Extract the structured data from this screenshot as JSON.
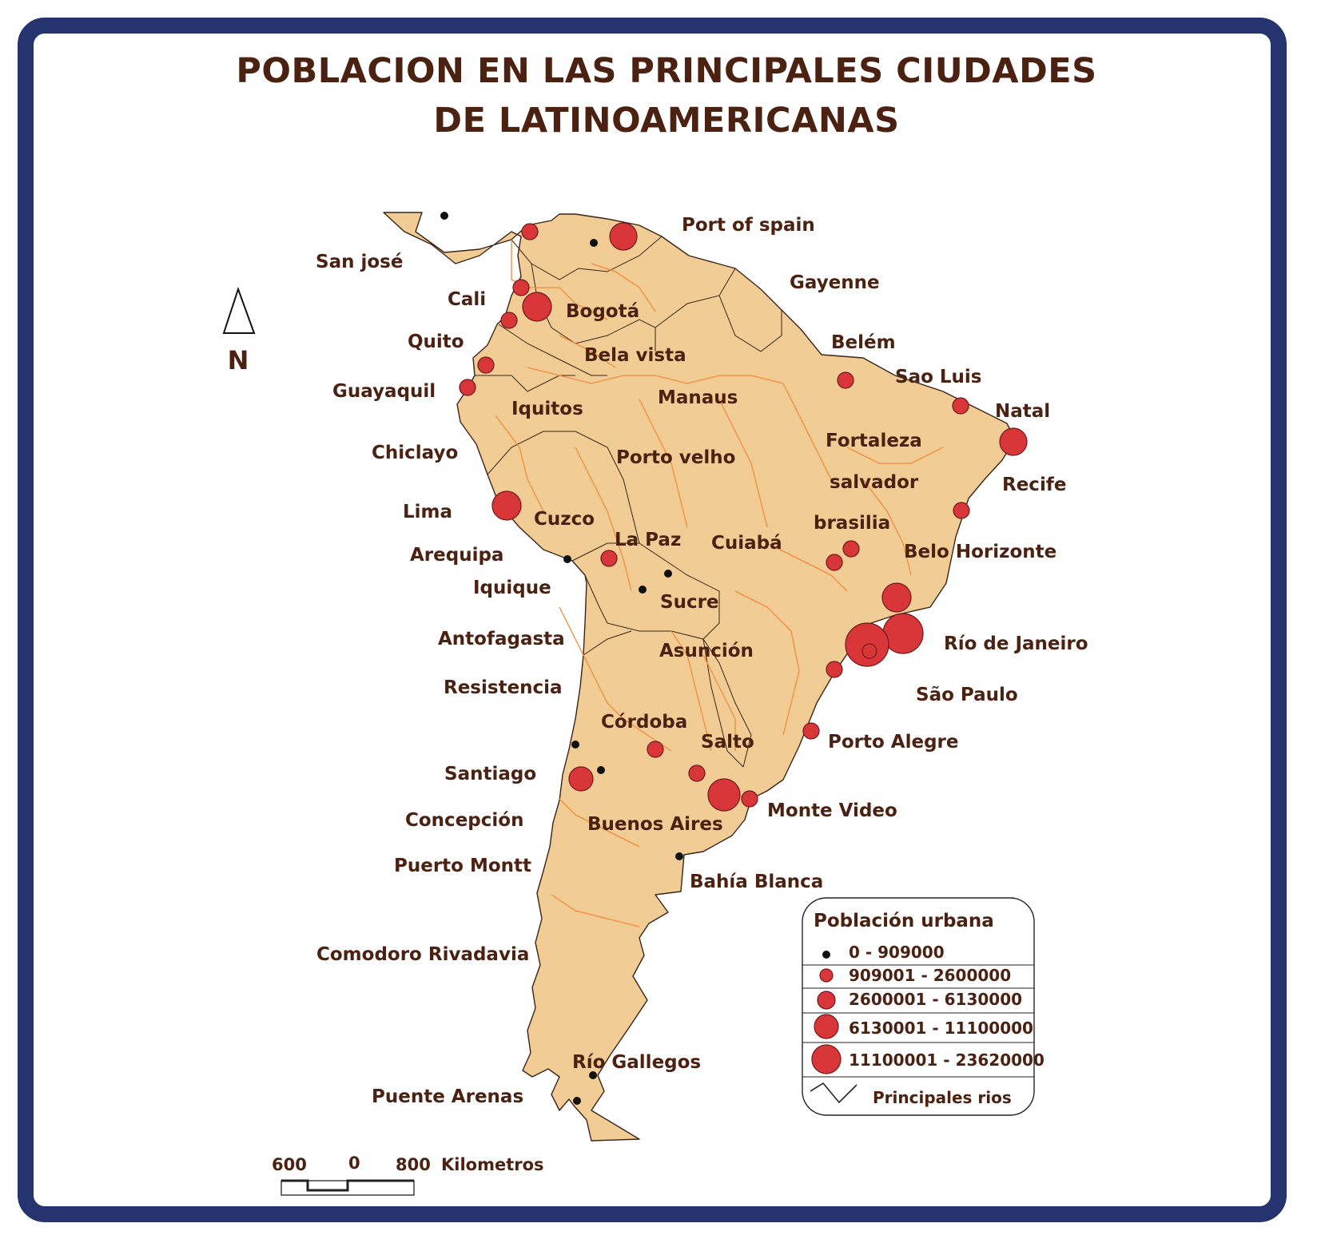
{
  "title_line1": "POBLACION EN LAS PRINCIPALES CIUDADES",
  "title_line2": "DE LATINOAMERICANAS",
  "north_label": "N",
  "colors": {
    "frame": "#25336e",
    "land": "#f1cc94",
    "rivers": "#f28c3c",
    "city_circle": "#d9363a",
    "text": "#4b2212"
  },
  "labels": [
    {
      "id": "port-of-spain",
      "text": "Port of spain"
    },
    {
      "id": "san-jose",
      "text": "San josé"
    },
    {
      "id": "gayenne",
      "text": "Gayenne"
    },
    {
      "id": "cali",
      "text": "Cali"
    },
    {
      "id": "bogota",
      "text": "Bogotá"
    },
    {
      "id": "quito",
      "text": "Quito"
    },
    {
      "id": "belem",
      "text": "Belém"
    },
    {
      "id": "bela-vista",
      "text": "Bela vista"
    },
    {
      "id": "sao-luis",
      "text": "Sao Luis"
    },
    {
      "id": "guayaquil",
      "text": "Guayaquil"
    },
    {
      "id": "manaus",
      "text": "Manaus"
    },
    {
      "id": "iquitos",
      "text": "Iquitos"
    },
    {
      "id": "natal",
      "text": "Natal"
    },
    {
      "id": "fortaleza",
      "text": "Fortaleza"
    },
    {
      "id": "chiclayo",
      "text": "Chiclayo"
    },
    {
      "id": "porto-velho",
      "text": "Porto velho"
    },
    {
      "id": "salvador",
      "text": "salvador"
    },
    {
      "id": "recife",
      "text": "Recife"
    },
    {
      "id": "lima",
      "text": "Lima"
    },
    {
      "id": "cuzco",
      "text": "Cuzco"
    },
    {
      "id": "brasilia",
      "text": "brasilia"
    },
    {
      "id": "la-paz",
      "text": "La Paz"
    },
    {
      "id": "cuiaba",
      "text": "Cuiabá"
    },
    {
      "id": "arequipa",
      "text": "Arequipa"
    },
    {
      "id": "belo-horizonte",
      "text": "Belo Horizonte"
    },
    {
      "id": "iquique",
      "text": "Iquique"
    },
    {
      "id": "sucre",
      "text": "Sucre"
    },
    {
      "id": "antofagasta",
      "text": "Antofagasta"
    },
    {
      "id": "rio-de-janeiro",
      "text": "Río de Janeiro"
    },
    {
      "id": "asuncion",
      "text": "Asunción"
    },
    {
      "id": "resistencia",
      "text": "Resistencia"
    },
    {
      "id": "sao-paulo",
      "text": "São Paulo"
    },
    {
      "id": "cordoba",
      "text": "Córdoba"
    },
    {
      "id": "salto",
      "text": "Salto"
    },
    {
      "id": "porto-alegre",
      "text": "Porto Alegre"
    },
    {
      "id": "santiago",
      "text": "Santiago"
    },
    {
      "id": "monte-video",
      "text": "Monte Video"
    },
    {
      "id": "concepcion",
      "text": "Concepción"
    },
    {
      "id": "buenos-aires",
      "text": "Buenos Aires"
    },
    {
      "id": "puerto-montt",
      "text": "Puerto Montt"
    },
    {
      "id": "bahia-blanca",
      "text": "Bahía Blanca"
    },
    {
      "id": "comodoro-rivadavia",
      "text": "Comodoro Rivadavia"
    },
    {
      "id": "rio-gallegos",
      "text": "Río Gallegos"
    },
    {
      "id": "puente-arenas",
      "text": "Puente Arenas"
    }
  ],
  "legend": {
    "title": "Población urbana",
    "classes": [
      {
        "range": "0 - 909000"
      },
      {
        "range": "909001 - 2600000"
      },
      {
        "range": "2600001 - 6130000"
      },
      {
        "range": "6130001 - 11100000"
      },
      {
        "range": "11100001 - 23620000"
      }
    ],
    "rivers_label": "Principales rios"
  },
  "scale_bar": {
    "left": "600",
    "middle": "0",
    "right": "800",
    "unit": "Kilometros"
  }
}
